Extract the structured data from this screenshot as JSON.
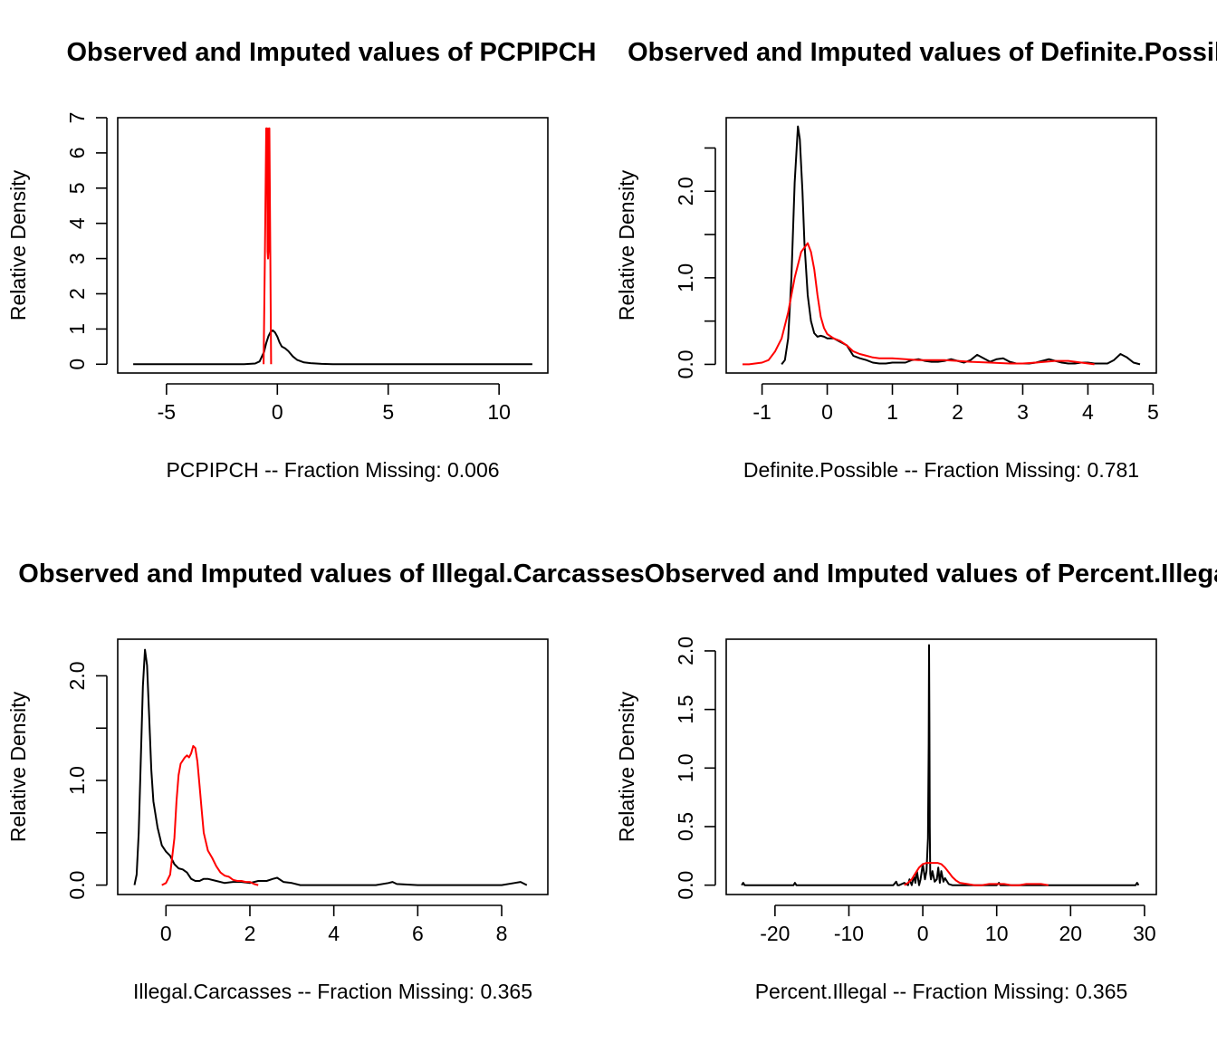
{
  "colors": {
    "observed": "#000000",
    "imputed": "#ff0000"
  },
  "chart_data": [
    {
      "type": "line",
      "title": "Observed and Imputed values of PCPIPCH",
      "xlabel": "PCPIPCH   --  Fraction Missing: 0.006",
      "ylabel": "Relative Density",
      "xlim": [
        -7.2,
        12.2
      ],
      "ylim": [
        -0.25,
        7.0
      ],
      "xticks": [
        -5,
        0,
        5,
        10
      ],
      "xtick_labels": [
        "-5",
        "0",
        "5",
        "10"
      ],
      "yticks": [
        0,
        1,
        2,
        3,
        4,
        5,
        6,
        7
      ],
      "ytick_labels": [
        "0",
        "1",
        "2",
        "3",
        "4",
        "5",
        "6",
        "7"
      ],
      "grid": false,
      "series": [
        {
          "color": "#000000",
          "x": [
            -6.5,
            -5.0,
            -3.0,
            -1.5,
            -1.0,
            -0.8,
            -0.6,
            -0.5,
            -0.4,
            -0.3,
            -0.2,
            -0.1,
            0.0,
            0.1,
            0.2,
            0.35,
            0.5,
            0.7,
            0.9,
            1.2,
            1.5,
            2.0,
            2.5,
            3.0,
            4.0,
            6.0,
            8.0,
            10.0,
            11.5
          ],
          "y": [
            0.0,
            0.0,
            0.0,
            0.0,
            0.02,
            0.08,
            0.35,
            0.6,
            0.8,
            0.92,
            0.96,
            0.9,
            0.78,
            0.62,
            0.5,
            0.45,
            0.37,
            0.22,
            0.12,
            0.05,
            0.03,
            0.01,
            0.0,
            0.0,
            0.0,
            0.0,
            0.0,
            0.0,
            0.0
          ]
        },
        {
          "color": "#ff0000",
          "x": [
            -0.62,
            -0.56,
            -0.5,
            -0.46,
            -0.44,
            -0.42,
            -0.4,
            -0.38,
            -0.36,
            -0.32,
            -0.28
          ],
          "y": [
            0.0,
            3.2,
            6.7,
            6.7,
            3.2,
            3.0,
            3.2,
            6.7,
            6.7,
            3.2,
            0.0
          ]
        }
      ]
    },
    {
      "type": "line",
      "title": "Observed and Imputed values of Definite.Possible",
      "xlabel": "Definite.Possible   --  Fraction Missing: 0.781",
      "ylabel": "Relative Density",
      "xlim": [
        -1.55,
        5.05
      ],
      "ylim": [
        -0.1,
        2.85
      ],
      "xticks": [
        -1,
        0,
        1,
        2,
        3,
        4,
        5
      ],
      "xtick_labels": [
        "-1",
        "0",
        "1",
        "2",
        "3",
        "4",
        "5"
      ],
      "yticks": [
        0.0,
        0.5,
        1.0,
        1.5,
        2.0,
        2.5
      ],
      "ytick_labels": [
        "0.0",
        "",
        "1.0",
        "",
        "2.0",
        ""
      ],
      "grid": false,
      "series": [
        {
          "color": "#000000",
          "x": [
            -0.7,
            -0.65,
            -0.6,
            -0.55,
            -0.5,
            -0.45,
            -0.42,
            -0.38,
            -0.35,
            -0.3,
            -0.25,
            -0.2,
            -0.15,
            -0.1,
            -0.05,
            0.0,
            0.1,
            0.2,
            0.3,
            0.4,
            0.5,
            0.6,
            0.7,
            0.8,
            0.9,
            1.0,
            1.1,
            1.2,
            1.3,
            1.4,
            1.5,
            1.6,
            1.7,
            1.8,
            1.9,
            2.0,
            2.1,
            2.2,
            2.3,
            2.4,
            2.5,
            2.6,
            2.7,
            2.8,
            2.9,
            3.0,
            3.1,
            3.2,
            3.3,
            3.4,
            3.5,
            3.6,
            3.7,
            3.8,
            3.9,
            4.0,
            4.1,
            4.2,
            4.3,
            4.4,
            4.5,
            4.6,
            4.7,
            4.8
          ],
          "y": [
            0.0,
            0.05,
            0.3,
            1.0,
            2.1,
            2.75,
            2.6,
            2.0,
            1.4,
            0.8,
            0.5,
            0.36,
            0.32,
            0.33,
            0.32,
            0.3,
            0.3,
            0.26,
            0.22,
            0.1,
            0.07,
            0.05,
            0.02,
            0.01,
            0.01,
            0.02,
            0.02,
            0.02,
            0.05,
            0.06,
            0.04,
            0.03,
            0.03,
            0.04,
            0.06,
            0.04,
            0.02,
            0.05,
            0.11,
            0.07,
            0.03,
            0.06,
            0.07,
            0.03,
            0.01,
            0.01,
            0.01,
            0.02,
            0.04,
            0.06,
            0.04,
            0.02,
            0.01,
            0.01,
            0.02,
            0.02,
            0.01,
            0.01,
            0.01,
            0.05,
            0.12,
            0.08,
            0.02,
            0.0
          ]
        },
        {
          "color": "#ff0000",
          "x": [
            -1.3,
            -1.2,
            -1.0,
            -0.9,
            -0.8,
            -0.7,
            -0.6,
            -0.5,
            -0.4,
            -0.3,
            -0.25,
            -0.2,
            -0.15,
            -0.1,
            -0.05,
            0.0,
            0.1,
            0.2,
            0.3,
            0.4,
            0.5,
            0.6,
            0.7,
            0.8,
            0.9,
            1.0,
            1.2,
            1.4,
            1.6,
            1.8,
            2.0,
            2.2,
            2.5,
            2.8,
            3.0,
            3.2,
            3.5,
            3.7,
            3.9,
            4.1
          ],
          "y": [
            0.0,
            0.0,
            0.02,
            0.05,
            0.15,
            0.3,
            0.6,
            1.0,
            1.3,
            1.4,
            1.3,
            1.1,
            0.8,
            0.55,
            0.42,
            0.35,
            0.3,
            0.27,
            0.22,
            0.15,
            0.12,
            0.1,
            0.08,
            0.07,
            0.07,
            0.07,
            0.06,
            0.05,
            0.05,
            0.05,
            0.04,
            0.03,
            0.02,
            0.01,
            0.01,
            0.02,
            0.04,
            0.04,
            0.02,
            0.0
          ]
        }
      ]
    },
    {
      "type": "line",
      "title": "Observed and Imputed values of Illegal.Carcasses",
      "xlabel": "Illegal.Carcasses   --  Fraction Missing: 0.365",
      "ylabel": "Relative Density",
      "xlim": [
        -1.15,
        9.1
      ],
      "ylim": [
        -0.09,
        2.35
      ],
      "xticks": [
        0,
        2,
        4,
        6,
        8
      ],
      "xtick_labels": [
        "0",
        "2",
        "4",
        "6",
        "8"
      ],
      "yticks": [
        0.0,
        0.5,
        1.0,
        1.5,
        2.0
      ],
      "ytick_labels": [
        "0.0",
        "",
        "1.0",
        "",
        "2.0"
      ],
      "grid": false,
      "series": [
        {
          "color": "#000000",
          "x": [
            -0.75,
            -0.7,
            -0.65,
            -0.6,
            -0.55,
            -0.5,
            -0.45,
            -0.4,
            -0.35,
            -0.3,
            -0.2,
            -0.1,
            0.0,
            0.1,
            0.2,
            0.3,
            0.4,
            0.5,
            0.6,
            0.7,
            0.8,
            0.9,
            1.0,
            1.2,
            1.4,
            1.6,
            1.8,
            2.0,
            2.2,
            2.4,
            2.55,
            2.65,
            2.8,
            3.0,
            3.2,
            4.0,
            5.0,
            5.3,
            5.4,
            5.5,
            6.0,
            7.0,
            8.0,
            8.3,
            8.45,
            8.6
          ],
          "y": [
            0.0,
            0.1,
            0.5,
            1.2,
            1.9,
            2.25,
            2.1,
            1.6,
            1.1,
            0.8,
            0.55,
            0.38,
            0.32,
            0.28,
            0.2,
            0.16,
            0.15,
            0.12,
            0.06,
            0.04,
            0.04,
            0.06,
            0.06,
            0.04,
            0.02,
            0.03,
            0.03,
            0.02,
            0.04,
            0.04,
            0.06,
            0.07,
            0.03,
            0.02,
            0.0,
            0.0,
            0.0,
            0.02,
            0.03,
            0.01,
            0.0,
            0.0,
            0.0,
            0.02,
            0.03,
            0.0
          ]
        },
        {
          "color": "#ff0000",
          "x": [
            -0.1,
            0.0,
            0.1,
            0.2,
            0.25,
            0.3,
            0.35,
            0.4,
            0.45,
            0.5,
            0.55,
            0.6,
            0.65,
            0.7,
            0.75,
            0.8,
            0.85,
            0.9,
            1.0,
            1.1,
            1.2,
            1.3,
            1.4,
            1.5,
            1.6,
            1.7,
            1.8,
            1.9,
            2.0,
            2.1,
            2.2
          ],
          "y": [
            0.0,
            0.02,
            0.1,
            0.45,
            0.8,
            1.05,
            1.16,
            1.19,
            1.22,
            1.24,
            1.22,
            1.26,
            1.33,
            1.31,
            1.18,
            0.95,
            0.72,
            0.5,
            0.33,
            0.26,
            0.18,
            0.12,
            0.09,
            0.08,
            0.05,
            0.04,
            0.04,
            0.03,
            0.03,
            0.01,
            0.0
          ]
        }
      ]
    },
    {
      "type": "line",
      "title": "Observed and Imputed values of Percent.Illegal",
      "xlabel": "Percent.Illegal   --  Fraction Missing: 0.365",
      "ylabel": "Relative Density",
      "xlim": [
        -26.6,
        31.6
      ],
      "ylim": [
        -0.08,
        2.1
      ],
      "xticks": [
        -20,
        -10,
        0,
        10,
        20,
        30
      ],
      "xtick_labels": [
        "-20",
        "-10",
        "0",
        "10",
        "20",
        "30"
      ],
      "yticks": [
        0.0,
        0.5,
        1.0,
        1.5,
        2.0
      ],
      "ytick_labels": [
        "0.0",
        "0.5",
        "1.0",
        "1.5",
        "2.0"
      ],
      "grid": false,
      "series": [
        {
          "color": "#000000",
          "x": [
            -24.5,
            -24.3,
            -24.1,
            -18,
            -17.5,
            -17.3,
            -17.1,
            -10,
            -4,
            -3.6,
            -3.4,
            -3.2,
            -2.5,
            -2.0,
            -1.8,
            -1.5,
            -1.2,
            -1.0,
            -0.8,
            -0.5,
            -0.3,
            0.0,
            0.3,
            0.5,
            0.7,
            0.8,
            0.85,
            0.9,
            0.95,
            1.0,
            1.1,
            1.3,
            1.6,
            1.9,
            2.1,
            2.3,
            2.5,
            2.8,
            3.0,
            3.5,
            4,
            10,
            10.3,
            10.5,
            20,
            28.8,
            29.0,
            29.2
          ],
          "y": [
            0.0,
            0.02,
            0.0,
            0.0,
            0.0,
            0.02,
            0.0,
            0.0,
            0.0,
            0.03,
            0.0,
            0.0,
            0.02,
            0.0,
            0.05,
            0.0,
            0.08,
            0.02,
            0.12,
            0.0,
            0.05,
            0.18,
            0.05,
            0.12,
            0.4,
            1.2,
            2.05,
            1.4,
            0.5,
            0.1,
            0.05,
            0.12,
            0.03,
            0.05,
            0.15,
            0.02,
            0.12,
            0.03,
            0.06,
            0.01,
            0.0,
            0.0,
            0.02,
            0.0,
            0.0,
            0.0,
            0.02,
            0.0
          ]
        },
        {
          "color": "#ff0000",
          "x": [
            -2.5,
            -2.0,
            -1.5,
            -1.0,
            -0.5,
            0.0,
            0.5,
            1.0,
            1.5,
            2.0,
            2.5,
            3.0,
            3.5,
            4.0,
            4.5,
            5.0,
            6.0,
            7.0,
            8.0,
            9.0,
            10.0,
            11.0,
            12.0,
            13.0,
            14.0,
            15.0,
            16.0,
            17.0
          ],
          "y": [
            0.0,
            0.02,
            0.05,
            0.1,
            0.15,
            0.18,
            0.19,
            0.19,
            0.19,
            0.19,
            0.18,
            0.15,
            0.11,
            0.07,
            0.04,
            0.02,
            0.01,
            0.0,
            0.0,
            0.01,
            0.01,
            0.01,
            0.0,
            0.0,
            0.01,
            0.01,
            0.01,
            0.0
          ]
        }
      ]
    }
  ]
}
